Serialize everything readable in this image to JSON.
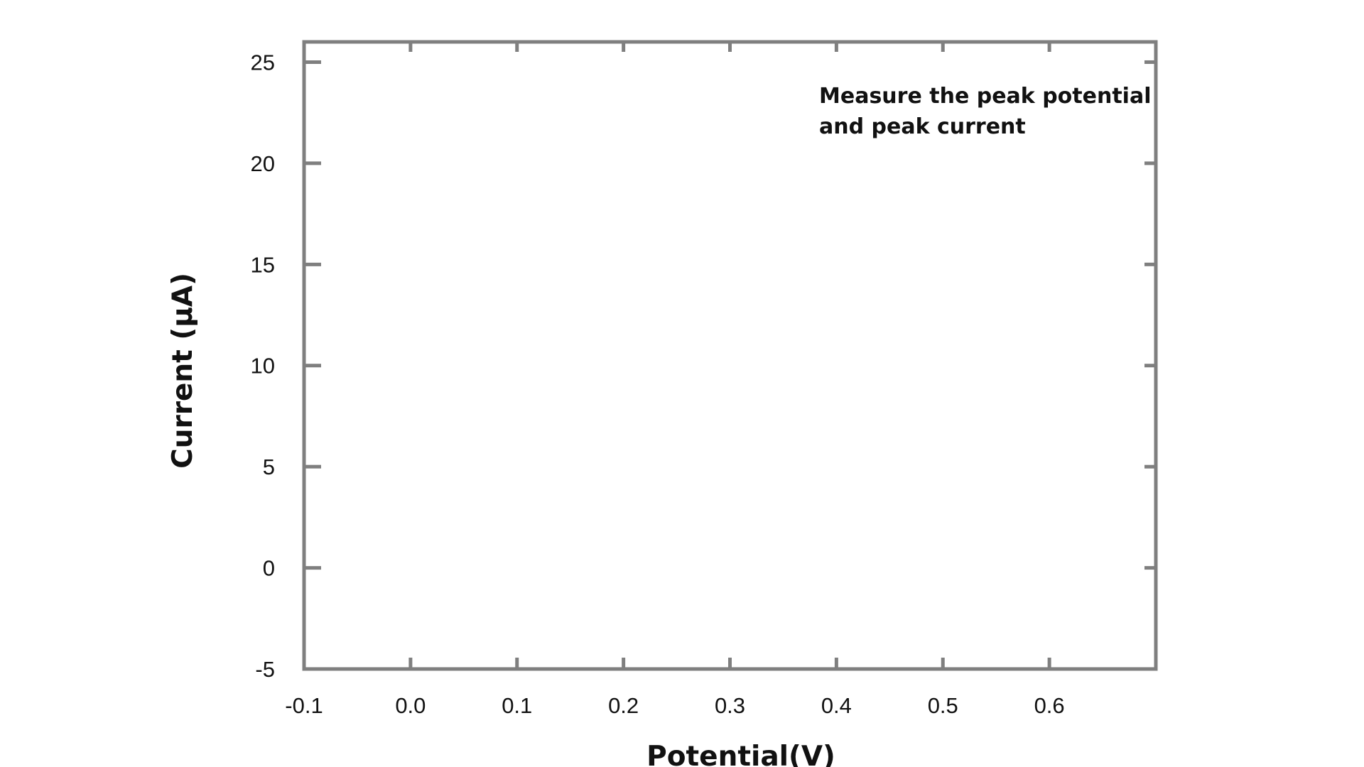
{
  "chart_data": {
    "type": "line",
    "title": "",
    "xlabel": "Potential(V)",
    "ylabel": "Current (μA)",
    "xlim": [
      -0.1,
      0.7
    ],
    "ylim": [
      -5,
      26
    ],
    "x_ticks": [
      {
        "value": -0.1,
        "label": "-0.1"
      },
      {
        "value": 0.0,
        "label": "0.0"
      },
      {
        "value": 0.1,
        "label": "0.1"
      },
      {
        "value": 0.2,
        "label": "0.2"
      },
      {
        "value": 0.3,
        "label": "0.3"
      },
      {
        "value": 0.4,
        "label": "0.4"
      },
      {
        "value": 0.5,
        "label": "0.5"
      },
      {
        "value": 0.6,
        "label": "0.6"
      }
    ],
    "y_ticks": [
      {
        "value": -5,
        "label": "-5"
      },
      {
        "value": 0,
        "label": "0"
      },
      {
        "value": 5,
        "label": "5"
      },
      {
        "value": 10,
        "label": "10"
      },
      {
        "value": 15,
        "label": "15"
      },
      {
        "value": 20,
        "label": "20"
      },
      {
        "value": 25,
        "label": "25"
      }
    ],
    "series": [],
    "grid": false,
    "annotations": [
      {
        "lines": [
          "Measure the peak potential",
          "and peak current"
        ],
        "placement": "top-right"
      }
    ],
    "colors": {
      "frame": "#7f7f7f",
      "text": "#111111",
      "background": "#ffffff"
    }
  }
}
